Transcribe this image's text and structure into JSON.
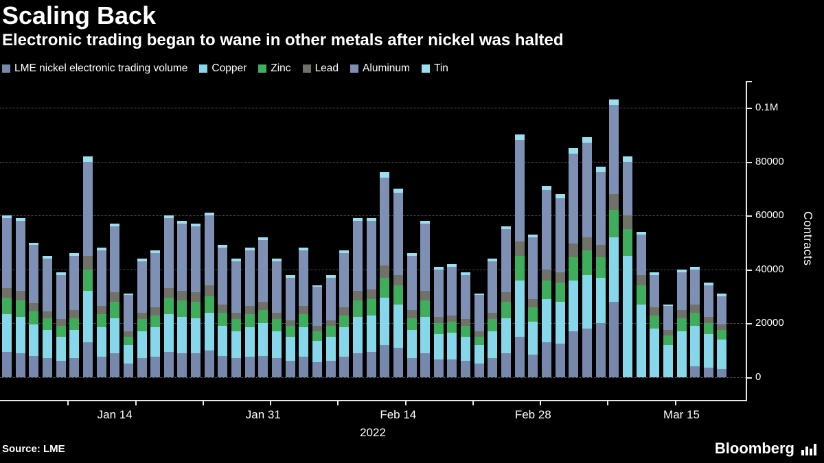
{
  "header": {
    "title": "Scaling Back",
    "subtitle": "Electronic trading began to wane in other metals after nickel was halted"
  },
  "legend": [
    {
      "label": "LME nickel electronic trading volume",
      "color": "#7688ab"
    },
    {
      "label": "Copper",
      "color": "#86d7e9"
    },
    {
      "label": "Zinc",
      "color": "#3fae5c"
    },
    {
      "label": "Lead",
      "color": "#70726a"
    },
    {
      "label": "Aluminum",
      "color": "#7e90b4"
    },
    {
      "label": "Tin",
      "color": "#9adfee"
    }
  ],
  "chart_data": {
    "type": "bar",
    "stacked": true,
    "title": "Scaling Back",
    "xlabel": "2022",
    "ylabel": "Contracts",
    "ylim": [
      0,
      105000
    ],
    "grid": "dotted-horizontal",
    "legend_position": "top-left",
    "x": [
      "Jan 4",
      "Jan 5",
      "Jan 6",
      "Jan 7",
      "Jan 10",
      "Jan 11",
      "Jan 12",
      "Jan 13",
      "Jan 14",
      "Jan 17",
      "Jan 18",
      "Jan 19",
      "Jan 20",
      "Jan 21",
      "Jan 24",
      "Jan 25",
      "Jan 26",
      "Jan 27",
      "Jan 28",
      "Jan 31",
      "Feb 1",
      "Feb 2",
      "Feb 3",
      "Feb 4",
      "Feb 7",
      "Feb 8",
      "Feb 9",
      "Feb 10",
      "Feb 11",
      "Feb 14",
      "Feb 15",
      "Feb 16",
      "Feb 17",
      "Feb 18",
      "Feb 21",
      "Feb 22",
      "Feb 23",
      "Feb 24",
      "Feb 25",
      "Feb 28",
      "Mar 1",
      "Mar 2",
      "Mar 3",
      "Mar 4",
      "Mar 7",
      "Mar 8",
      "Mar 9",
      "Mar 10",
      "Mar 11",
      "Mar 14",
      "Mar 15",
      "Mar 16",
      "Mar 17",
      "Mar 18"
    ],
    "series": [
      {
        "name": "LME nickel electronic trading volume",
        "color": "#7688ab",
        "values": [
          9500,
          9000,
          8000,
          7000,
          6000,
          7000,
          13000,
          7500,
          9000,
          5000,
          7000,
          7500,
          9500,
          9000,
          9000,
          10000,
          8000,
          7000,
          7500,
          8000,
          7000,
          6000,
          7500,
          5500,
          6000,
          7500,
          9000,
          9500,
          12000,
          11000,
          7000,
          9000,
          6500,
          6500,
          6000,
          5000,
          7000,
          9000,
          15000,
          8500,
          13000,
          12500,
          17000,
          18000,
          20000,
          28000,
          0,
          0,
          0,
          0,
          0,
          4000,
          3500,
          3000
        ]
      },
      {
        "name": "Copper",
        "color": "#86d7e9",
        "values": [
          14000,
          13500,
          11500,
          10500,
          9000,
          10500,
          19000,
          11000,
          13000,
          7000,
          10000,
          11000,
          14000,
          13500,
          13000,
          14000,
          11000,
          10000,
          11000,
          12000,
          10000,
          9000,
          11000,
          8000,
          9000,
          11000,
          13500,
          13500,
          17500,
          16000,
          10500,
          13500,
          9500,
          10000,
          9000,
          7000,
          10000,
          13000,
          21000,
          12000,
          16000,
          15500,
          19000,
          20000,
          17000,
          24000,
          45000,
          27000,
          18000,
          12000,
          17000,
          15000,
          12500,
          11000
        ]
      },
      {
        "name": "Zinc",
        "color": "#3fae5c",
        "values": [
          6000,
          6000,
          5000,
          4500,
          4000,
          4500,
          8000,
          5000,
          6000,
          3000,
          4500,
          4500,
          6000,
          6000,
          6000,
          6000,
          5000,
          4500,
          5000,
          5000,
          4500,
          4000,
          5000,
          3500,
          4000,
          4500,
          6000,
          6000,
          7500,
          7000,
          4500,
          6000,
          4000,
          4000,
          4000,
          3000,
          4500,
          6000,
          9000,
          5500,
          7000,
          7000,
          8500,
          9000,
          7500,
          10000,
          10000,
          7000,
          5000,
          3500,
          5000,
          5000,
          4000,
          3500
        ]
      },
      {
        "name": "Lead",
        "color": "#70726a",
        "values": [
          3500,
          3500,
          3000,
          2500,
          2500,
          3000,
          5000,
          3000,
          3500,
          2000,
          2500,
          3000,
          3500,
          3500,
          3500,
          4000,
          3000,
          2500,
          3000,
          3000,
          2500,
          2000,
          3000,
          2000,
          2000,
          3000,
          3500,
          3500,
          4500,
          4000,
          3000,
          3500,
          2500,
          2500,
          2500,
          2000,
          2500,
          3500,
          5500,
          3000,
          4000,
          4000,
          5000,
          5000,
          4500,
          6000,
          5000,
          4000,
          3000,
          2000,
          3000,
          3000,
          2500,
          2000
        ]
      },
      {
        "name": "Aluminum",
        "color": "#7e90b4",
        "values": [
          26000,
          26000,
          21500,
          19500,
          16500,
          20000,
          35000,
          20500,
          24500,
          13500,
          19000,
          20000,
          26000,
          25000,
          24500,
          26000,
          21000,
          19000,
          20500,
          23000,
          19000,
          16000,
          20500,
          14500,
          16000,
          20000,
          26000,
          25500,
          32500,
          30500,
          20000,
          25000,
          17500,
          18000,
          16500,
          13500,
          19000,
          23500,
          37500,
          23000,
          29500,
          27500,
          33500,
          35000,
          27000,
          33000,
          20000,
          15000,
          12000,
          9000,
          14000,
          13000,
          11500,
          10500
        ]
      },
      {
        "name": "Tin",
        "color": "#9adfee",
        "values": [
          1000,
          1000,
          1000,
          1000,
          1000,
          1000,
          2000,
          1000,
          1000,
          500,
          1000,
          1000,
          1000,
          1000,
          1000,
          1000,
          1000,
          1000,
          1000,
          1000,
          1000,
          1000,
          1000,
          500,
          1000,
          1000,
          1000,
          1000,
          2000,
          1500,
          1000,
          1000,
          1000,
          1000,
          1000,
          500,
          1000,
          1000,
          2000,
          1000,
          1500,
          1500,
          2000,
          2000,
          2000,
          2000,
          2000,
          1000,
          1000,
          500,
          1000,
          1000,
          1000,
          1000
        ]
      }
    ],
    "y_ticks": [
      {
        "value": 0,
        "label": "0"
      },
      {
        "value": 20000,
        "label": "20000"
      },
      {
        "value": 40000,
        "label": "40000"
      },
      {
        "value": 60000,
        "label": "60000"
      },
      {
        "value": 80000,
        "label": "80000"
      },
      {
        "value": 100000,
        "label": "0.1M"
      }
    ],
    "x_tick_labels": [
      {
        "index": 8,
        "label": "Jan 14"
      },
      {
        "index": 19,
        "label": "Jan 31"
      },
      {
        "index": 29,
        "label": "Feb 14"
      },
      {
        "index": 39,
        "label": "Feb 28"
      },
      {
        "index": 50,
        "label": "Mar 15"
      }
    ],
    "week_tick_after_indices": [
      4,
      9,
      14,
      19,
      24,
      29,
      34,
      39,
      44,
      49
    ],
    "x_axis_year": "2022"
  },
  "footer": {
    "source": "Source: LME",
    "brand": "Bloomberg"
  },
  "colors": {
    "background": "#000000",
    "text": "#ffffff",
    "gridline": "#606060",
    "axis": "#e8e8e8"
  }
}
